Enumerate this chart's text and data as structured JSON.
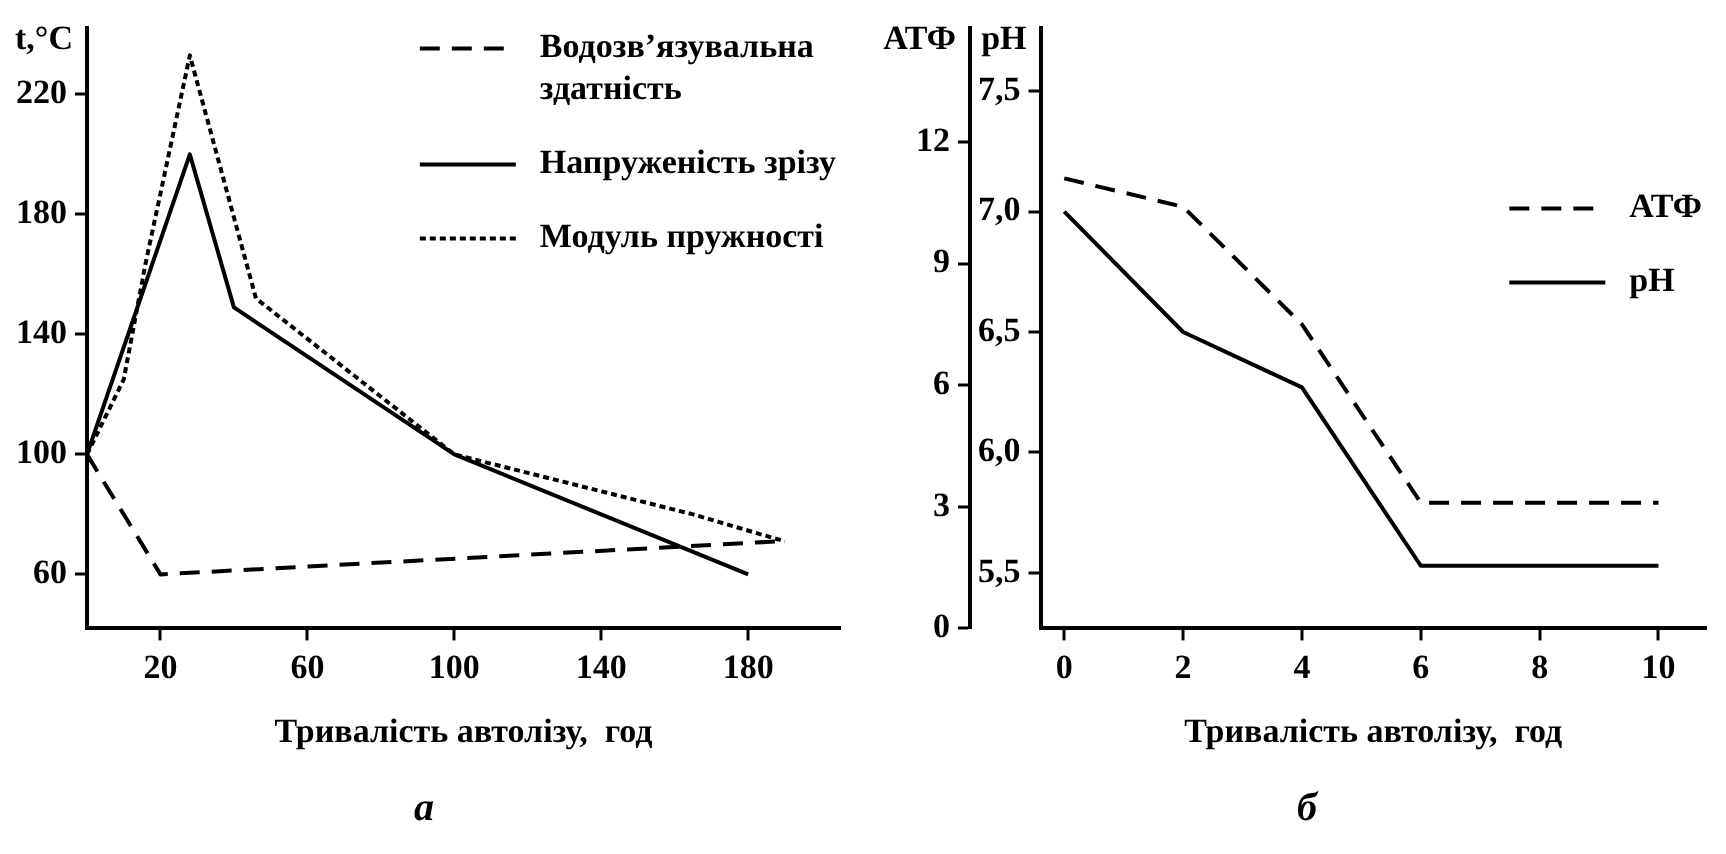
{
  "chart_data": [
    {
      "type": "line",
      "title": "а",
      "xlabel": "Тривалість автолізу,  год",
      "ylabel": "t,°C",
      "xlim": [
        0,
        205
      ],
      "xticks": [
        20,
        60,
        100,
        140,
        180
      ],
      "ylim": [
        42,
        242
      ],
      "yticks": [
        60,
        100,
        140,
        180,
        220
      ],
      "grid": false,
      "legend": "top right",
      "marker": "none",
      "series": [
        {
          "name": "Водозв’язувальна здатність",
          "color": "#000000",
          "line_style": "dashed",
          "x": [
            0,
            20,
            188
          ],
          "values": [
            100,
            60,
            71
          ]
        },
        {
          "name": "Напруженість зрізу",
          "color": "#000000",
          "line_style": "solid",
          "x": [
            0,
            28,
            40,
            100,
            180
          ],
          "values": [
            100,
            200,
            149,
            100,
            60
          ]
        },
        {
          "name": "Модуль пружності",
          "color": "#000000",
          "line_style": "dotted",
          "x": [
            0,
            10,
            16,
            28,
            46,
            100,
            165,
            190
          ],
          "values": [
            100,
            125,
            164,
            233,
            152,
            100,
            80,
            71
          ]
        }
      ]
    },
    {
      "type": "line",
      "title": "б",
      "xlabel": "Тривалість автолізу,  год",
      "ylabel": "АТФ",
      "y2label": "pH",
      "xlim": [
        -0.4,
        10.8
      ],
      "xticks": [
        0,
        2,
        4,
        6,
        8,
        10
      ],
      "ylim": [
        0,
        14.8
      ],
      "yticks": [
        0,
        3,
        6,
        9,
        12
      ],
      "y2lim": [
        5.27,
        7.76
      ],
      "y2ticks": [
        {
          "value": 5.5,
          "label": "5,5"
        },
        {
          "value": 6.0,
          "label": "6,0"
        },
        {
          "value": 6.5,
          "label": "6,5"
        },
        {
          "value": 7.0,
          "label": "7,0"
        },
        {
          "value": 7.5,
          "label": "7,5"
        }
      ],
      "grid": false,
      "legend": "right",
      "marker": "none",
      "series": [
        {
          "name": "АТФ",
          "color": "#000000",
          "line_style": "dashed",
          "x": [
            0,
            2,
            4,
            6,
            10
          ],
          "values": [
            11.1,
            10.4,
            7.5,
            3.1,
            3.1
          ]
        },
        {
          "name": "pH",
          "color": "#000000",
          "line_style": "solid",
          "axis": "y2",
          "x": [
            0,
            2,
            4,
            6,
            10
          ],
          "values": [
            7.0,
            6.5,
            6.27,
            5.53,
            5.53
          ]
        }
      ]
    }
  ]
}
